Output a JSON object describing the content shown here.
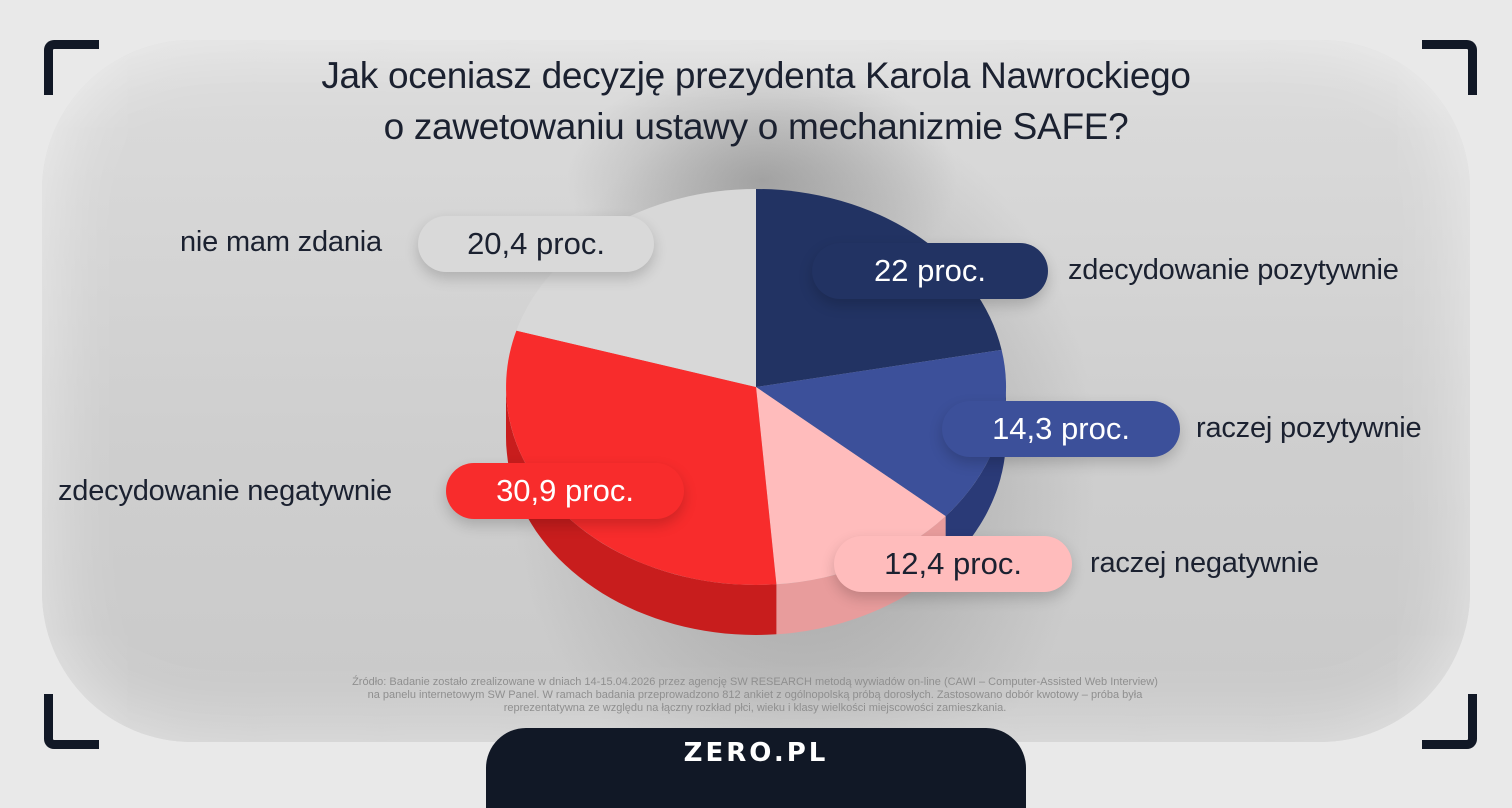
{
  "title": {
    "line1": "Jak oceniasz decyzję prezydenta Karola Nawrockiego",
    "line2": "o zawetowaniu ustawy o mechanizmie SAFE?"
  },
  "source": {
    "line1": "Źródło: Badanie zostało zrealizowane w dniach 14-15.04.2026 przez agencję SW RESEARCH metodą wywiadów on-line (CAWI – Computer-Assisted Web Interview)",
    "line2": "na panelu internetowym SW Panel. W ramach badania przeprowadzono 812 ankiet z ogólnopolską próbą dorosłych. Zastosowano dobór kwotowy – próba była",
    "line3": "reprezentatywna ze względu na łączny rozkład płci, wieku i klasy wielkości miejscowości zamieszkania."
  },
  "logo": "ZERO.PL",
  "colors": {
    "dark_navy": "#1b2130",
    "background": "#d4d4d4"
  },
  "chart_data": {
    "type": "pie",
    "title": "Jak oceniasz decyzję prezydenta Karola Nawrockiego o zawetowaniu ustawy o mechanizmie SAFE?",
    "unit": "proc.",
    "slices": [
      {
        "label": "zdecydowanie pozytywnie",
        "value": 22,
        "display": "22 proc.",
        "color": "#223363",
        "side_color": "#17244a",
        "text_color": "#ffffff"
      },
      {
        "label": "raczej pozytywnie",
        "value": 14.3,
        "display": "14,3 proc.",
        "color": "#3c509a",
        "side_color": "#2a3a77",
        "text_color": "#ffffff"
      },
      {
        "label": "raczej negatywnie",
        "value": 12.4,
        "display": "12,4 proc.",
        "color": "#ffbcbc",
        "side_color": "#e89c9c",
        "text_color": "#1b2130"
      },
      {
        "label": "zdecydowanie negatywnie",
        "value": 30.9,
        "display": "30,9 proc.",
        "color": "#f82c2c",
        "side_color": "#c81d1d",
        "text_color": "#ffffff"
      },
      {
        "label": "nie mam zdania",
        "value": 20.4,
        "display": "20,4 proc.",
        "color": "#d8d8d8",
        "side_color": "#bdbdbd",
        "text_color": "#1b2130"
      }
    ]
  }
}
